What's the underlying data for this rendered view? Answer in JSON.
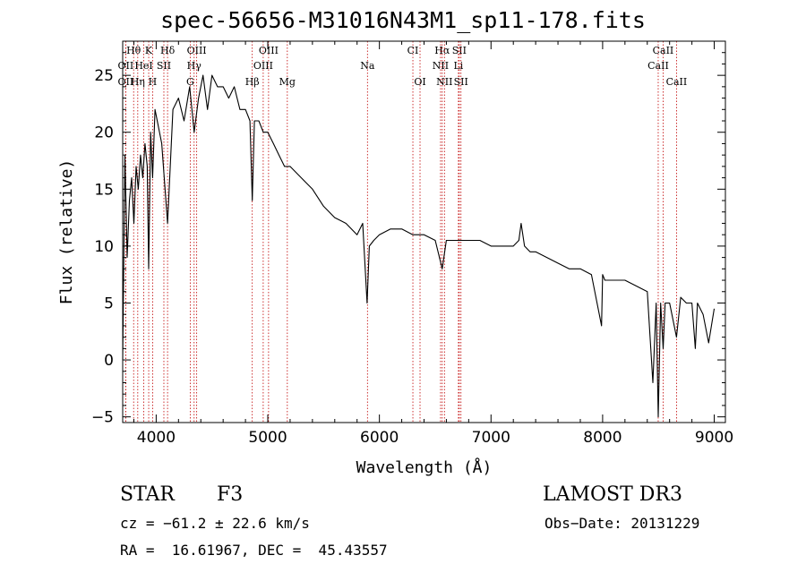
{
  "chart_data": {
    "type": "line",
    "title": "spec-56656-M31016N43M1_sp11-178.fits",
    "xlabel": "Wavelength (Å)",
    "ylabel": "Flux (relative)",
    "xlim": [
      3700,
      9100
    ],
    "ylim": [
      -5.5,
      28
    ],
    "xticks": [
      4000,
      5000,
      6000,
      7000,
      8000,
      9000
    ],
    "yticks": [
      -5,
      0,
      5,
      10,
      15,
      20,
      25
    ],
    "x_tick_labels": [
      "4000",
      "5000",
      "6000",
      "7000",
      "8000",
      "9000"
    ],
    "y_tick_labels": [
      "−5",
      "0",
      "5",
      "10",
      "15",
      "20",
      "25"
    ],
    "series": [
      {
        "name": "spectrum",
        "x": [
          3700,
          3720,
          3740,
          3760,
          3780,
          3800,
          3820,
          3840,
          3860,
          3880,
          3900,
          3920,
          3933,
          3950,
          3968,
          3990,
          4010,
          4050,
          4102,
          4150,
          4200,
          4250,
          4300,
          4340,
          4380,
          4420,
          4460,
          4500,
          4550,
          4600,
          4650,
          4700,
          4750,
          4800,
          4840,
          4861,
          4880,
          4920,
          4960,
          5000,
          5050,
          5100,
          5150,
          5200,
          5300,
          5400,
          5500,
          5600,
          5700,
          5800,
          5850,
          5890,
          5910,
          5950,
          6000,
          6100,
          6200,
          6300,
          6400,
          6500,
          6563,
          6600,
          6700,
          6800,
          6900,
          7000,
          7100,
          7200,
          7250,
          7270,
          7300,
          7350,
          7400,
          7500,
          7600,
          7700,
          7800,
          7900,
          7990,
          8000,
          8020,
          8100,
          8200,
          8300,
          8400,
          8450,
          8480,
          8498,
          8520,
          8542,
          8560,
          8600,
          8662,
          8700,
          8750,
          8800,
          8830,
          8850,
          8900,
          8950,
          9000
        ],
        "y": [
          0,
          18,
          9,
          14,
          16,
          12,
          17,
          15,
          18,
          16,
          19,
          17,
          8,
          20,
          16,
          22,
          21,
          19,
          12,
          22,
          23,
          21,
          24,
          20,
          23,
          25,
          22,
          25,
          24,
          24,
          23,
          24,
          22,
          22,
          21,
          14,
          21,
          21,
          20,
          20,
          19,
          18,
          17,
          17,
          16,
          15,
          13.5,
          12.5,
          12,
          11,
          12,
          5,
          10,
          10.5,
          11,
          11.5,
          11.5,
          11,
          11,
          10.5,
          8,
          10.5,
          10.5,
          10.5,
          10.5,
          10,
          10,
          10,
          10.5,
          12,
          10,
          9.5,
          9.5,
          9,
          8.5,
          8,
          8,
          7.5,
          3,
          7.5,
          7,
          7,
          7,
          6.5,
          6,
          -2,
          5,
          -5,
          5,
          1,
          5,
          5,
          2,
          5.5,
          5,
          5,
          1,
          5,
          4,
          1.5,
          4.5
        ]
      }
    ],
    "lines": [
      {
        "name": "Hθ",
        "wl": 3798,
        "row": 0
      },
      {
        "name": "K",
        "wl": 3933,
        "row": 0
      },
      {
        "name": "Hδ",
        "wl": 4102,
        "row": 0
      },
      {
        "name": "OIII",
        "wl": 4363,
        "row": 0
      },
      {
        "name": "OIII",
        "wl": 5007,
        "row": 0
      },
      {
        "name": "CI",
        "wl": 6300,
        "row": 0
      },
      {
        "name": "Hα",
        "wl": 6563,
        "row": 0
      },
      {
        "name": "SII",
        "wl": 6716,
        "row": 0
      },
      {
        "name": "CaII",
        "wl": 8542,
        "row": 0
      },
      {
        "name": "OII",
        "wl": 3727,
        "row": 1
      },
      {
        "name": "HeI",
        "wl": 3889,
        "row": 1
      },
      {
        "name": "SII",
        "wl": 4069,
        "row": 1
      },
      {
        "name": "Hγ",
        "wl": 4340,
        "row": 1
      },
      {
        "name": "OIII",
        "wl": 4959,
        "row": 1
      },
      {
        "name": "Na",
        "wl": 5893,
        "row": 1
      },
      {
        "name": "NII",
        "wl": 6548,
        "row": 1
      },
      {
        "name": "Li",
        "wl": 6708,
        "row": 1
      },
      {
        "name": "CaII",
        "wl": 8498,
        "row": 1
      },
      {
        "name": "OII",
        "wl": 3727,
        "row": 2
      },
      {
        "name": "Hη",
        "wl": 3835,
        "row": 2
      },
      {
        "name": "H",
        "wl": 3968,
        "row": 2
      },
      {
        "name": "G",
        "wl": 4305,
        "row": 2
      },
      {
        "name": "Hβ",
        "wl": 4861,
        "row": 2
      },
      {
        "name": "Mg",
        "wl": 5175,
        "row": 2
      },
      {
        "name": "OI",
        "wl": 6364,
        "row": 2
      },
      {
        "name": "NII",
        "wl": 6583,
        "row": 2
      },
      {
        "name": "SII",
        "wl": 6731,
        "row": 2
      },
      {
        "name": "CaII",
        "wl": 8662,
        "row": 2
      }
    ]
  },
  "info": {
    "object_class": "STAR",
    "subclass": "F3",
    "survey": "LAMOST DR3",
    "redshift": "cz = −61.2 ± 22.6 km/s",
    "obs_date": "Obs−Date: 20131229",
    "coords": "RA =  16.61967, DEC =  45.43557"
  },
  "colors": {
    "spectrum": "#000000",
    "line_markers": "#c00000"
  }
}
